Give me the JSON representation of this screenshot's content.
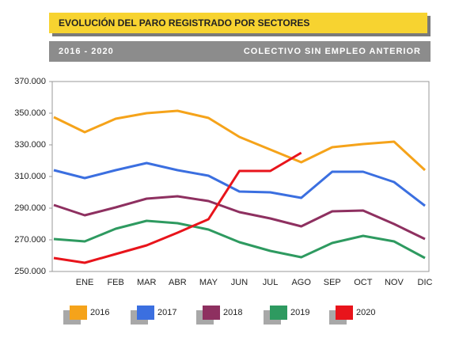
{
  "chart_data": {
    "type": "line",
    "title": "EVOLUCIÓN DEL PARO REGISTRADO POR SECTORES",
    "subtitle": "2016 - 2020",
    "annotations": [
      "COLECTIVO SIN EMPLEO ANTERIOR"
    ],
    "categories": [
      null,
      "ENE",
      "FEB",
      "MAR",
      "ABR",
      "MAY",
      "JUN",
      "JUL",
      "AGO",
      "SEP",
      "OCT",
      "NOV",
      "DIC"
    ],
    "series": [
      {
        "name": "2016",
        "color": "#f5a31a",
        "values": [
          347500,
          338000,
          346500,
          350000,
          351500,
          347000,
          335000,
          327000,
          319000,
          328500,
          330500,
          332000,
          314000
        ]
      },
      {
        "name": "2017",
        "color": "#3b6fe0",
        "values": [
          314000,
          309000,
          314000,
          318500,
          314000,
          310500,
          300500,
          300000,
          296500,
          313000,
          313000,
          306500,
          291500
        ]
      },
      {
        "name": "2018",
        "color": "#8e3060",
        "values": [
          292000,
          285500,
          290500,
          296000,
          297500,
          294500,
          287500,
          283500,
          278500,
          288000,
          288500,
          280000,
          270500
        ]
      },
      {
        "name": "2019",
        "color": "#2e9a60",
        "values": [
          270500,
          269000,
          277000,
          282000,
          280500,
          276500,
          268500,
          263000,
          259000,
          268000,
          272500,
          269000,
          258500
        ]
      },
      {
        "name": "2020",
        "color": "#e8141b",
        "values": [
          258500,
          255500,
          261000,
          266500,
          274500,
          283000,
          313500,
          313500,
          325000,
          null,
          null,
          null,
          null
        ]
      }
    ],
    "ylim": [
      250000,
      370000
    ],
    "yticks": [
      {
        "value": 250000,
        "label": "250.000"
      },
      {
        "value": 270000,
        "label": "270.000"
      },
      {
        "value": 290000,
        "label": "290.000"
      },
      {
        "value": 310000,
        "label": "310.000"
      },
      {
        "value": 330000,
        "label": "330.000"
      },
      {
        "value": 350000,
        "label": "350.000"
      },
      {
        "value": 370000,
        "label": "370.000"
      }
    ],
    "grid": false,
    "legend": "bottom"
  }
}
